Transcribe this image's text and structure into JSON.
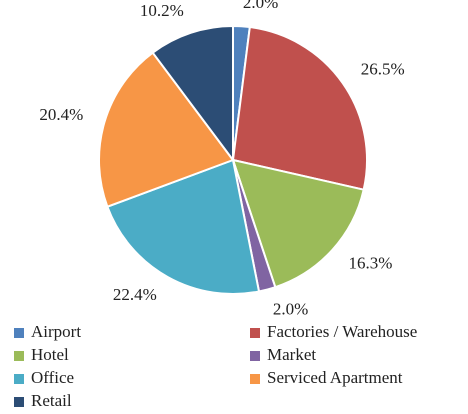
{
  "chart_data": {
    "type": "pie",
    "categories": [
      "Airport",
      "Factories / Warehouse",
      "Hotel",
      "Market",
      "Office",
      "Serviced Apartment",
      "Retail"
    ],
    "values": [
      2.0,
      26.5,
      16.3,
      2.0,
      22.4,
      20.4,
      10.2
    ],
    "value_labels": [
      "2.0%",
      "26.5%",
      "16.3%",
      "2.0%",
      "22.4%",
      "20.4%",
      "10.2%"
    ],
    "colors": [
      "#4f81bd",
      "#c0504d",
      "#9bbb59",
      "#8064a2",
      "#4bacc6",
      "#f79646",
      "#2c4d75"
    ],
    "legend": "bottom"
  }
}
